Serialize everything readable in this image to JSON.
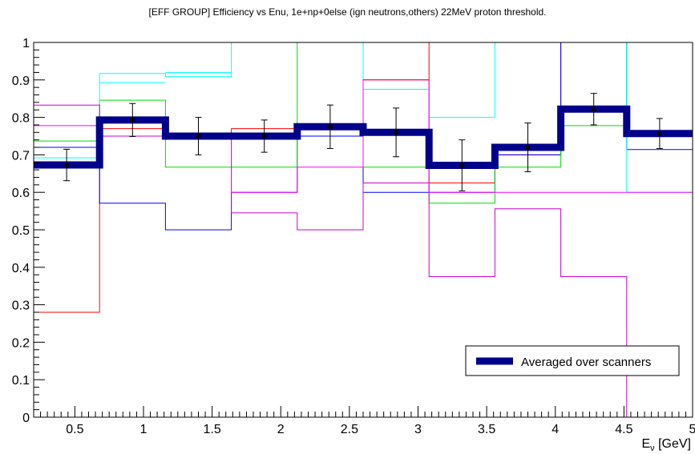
{
  "chart_data": {
    "type": "step-histogram",
    "title": "[EFF GROUP] Efficiency vs Enu, 1e+np+0else (ign neutrons,others) 22MeV proton threshold.",
    "xlabel": "E",
    "xlabel_sub": "ν",
    "xlabel_unit": "[GeV]",
    "ylabel": "",
    "xlim": [
      0.2,
      5.0
    ],
    "ylim": [
      0,
      1
    ],
    "xticks": [
      "0.5",
      "1",
      "1.5",
      "2",
      "2.5",
      "3",
      "3.5",
      "4",
      "4.5",
      "5"
    ],
    "yticks": [
      "0",
      "0.1",
      "0.2",
      "0.3",
      "0.4",
      "0.5",
      "0.6",
      "0.7",
      "0.8",
      "0.9",
      "1"
    ],
    "bin_edges": [
      0.2,
      0.68,
      1.16,
      1.64,
      2.12,
      2.6,
      3.08,
      3.56,
      4.04,
      4.52,
      5.0
    ],
    "series": [
      {
        "color": "#ff0000",
        "values": [
          0.28,
          0.77,
          0.75,
          0.77,
          0.77,
          1.0,
          0.625,
          0.7,
          1.0,
          1.0
        ]
      },
      {
        "color": "#0000ff",
        "values": [
          0.72,
          0.571,
          0.5,
          0.6,
          0.75,
          0.6,
          0.6,
          0.7,
          1.0,
          0.714
        ]
      },
      {
        "color": "#00dd00",
        "values": [
          0.737,
          0.846,
          0.667,
          0.667,
          1.0,
          0.667,
          0.571,
          0.667,
          0.778,
          1.0
        ]
      },
      {
        "color": "#00ffff",
        "values": [
          0.692,
          0.917,
          0.909,
          1.0,
          1.0,
          0.875,
          0.8,
          1.0,
          1.0,
          0.6
        ]
      },
      {
        "color": "#cc00cc",
        "values": [
          0.833,
          0.75,
          0.75,
          0.545,
          0.5,
          0.625,
          0.375,
          0.556,
          0.375,
          0.0
        ]
      },
      {
        "color": "#ff00ff",
        "values": [
          0.778,
          0.8,
          0.75,
          0.6,
          0.667,
          0.9,
          0.6,
          0.6,
          0.6,
          0.6
        ]
      }
    ],
    "extra_lines": [
      {
        "color": "#00ffff",
        "x": [
          0.68,
          1.16
        ],
        "y": 0.893
      },
      {
        "color": "#00ffff",
        "x": [
          1.16,
          1.64
        ],
        "y": 0.92
      },
      {
        "color": "#ff0000",
        "x": [
          2.6,
          3.08
        ],
        "y": 0.9
      }
    ],
    "average": {
      "name": "Averaged over scanners",
      "color": "#00008b",
      "values": [
        0.673,
        0.793,
        0.75,
        0.75,
        0.775,
        0.76,
        0.672,
        0.72,
        0.822,
        0.757
      ],
      "points": [
        {
          "x": 0.44,
          "y": 0.673,
          "err": 0.042
        },
        {
          "x": 0.92,
          "y": 0.793,
          "err": 0.044
        },
        {
          "x": 1.4,
          "y": 0.75,
          "err": 0.05
        },
        {
          "x": 1.88,
          "y": 0.75,
          "err": 0.043
        },
        {
          "x": 2.36,
          "y": 0.775,
          "err": 0.058
        },
        {
          "x": 2.84,
          "y": 0.76,
          "err": 0.065
        },
        {
          "x": 3.32,
          "y": 0.672,
          "err": 0.068
        },
        {
          "x": 3.8,
          "y": 0.72,
          "err": 0.065
        },
        {
          "x": 4.28,
          "y": 0.822,
          "err": 0.042
        },
        {
          "x": 4.76,
          "y": 0.757,
          "err": 0.04
        }
      ]
    },
    "legend": {
      "position": "bottom-right",
      "label": "Averaged over scanners",
      "color": "#00008b"
    }
  }
}
